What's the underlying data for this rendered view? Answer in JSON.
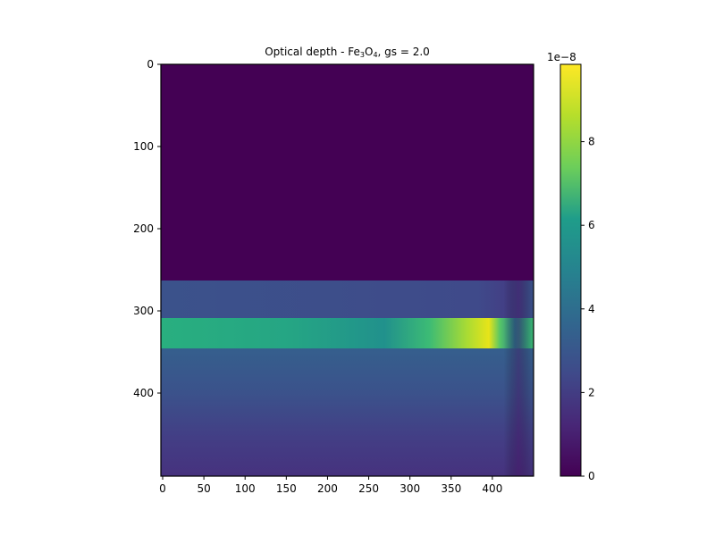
{
  "chart_data": {
    "type": "heatmap",
    "title": {
      "prefix": "Optical depth - Fe",
      "sub1": "3",
      "mid": "O",
      "sub2": "4",
      "suffix": ", gs = 2.0"
    },
    "xlabel": "",
    "ylabel": "",
    "xlim": [
      0,
      450
    ],
    "ylim": [
      0,
      500
    ],
    "y_inverted": true,
    "x_ticks": [
      "0",
      "50",
      "100",
      "150",
      "200",
      "250",
      "300",
      "350",
      "400"
    ],
    "y_ticks": [
      "0",
      "100",
      "200",
      "300",
      "400"
    ],
    "colormap": "viridis",
    "colorbar": {
      "range": [
        0,
        1e-08
      ],
      "tick_values": [
        0,
        2,
        4,
        6,
        8
      ],
      "ticks": [
        "0",
        "2",
        "4",
        "6",
        "8"
      ],
      "scale_label": "1e−8",
      "colors": [
        "#440154",
        "#482777",
        "#3f4a8a",
        "#31678e",
        "#26838f",
        "#1f9d8a",
        "#6cce5a",
        "#b6de2b",
        "#fee825"
      ]
    },
    "regions": [
      {
        "y_range": [
          0,
          263
        ],
        "level": 0.0
      },
      {
        "y_range": [
          263,
          308
        ],
        "level": 0.32
      },
      {
        "y_range": [
          308,
          345
        ],
        "level": 0.62,
        "peak_x": 395,
        "peak_level": 0.95
      },
      {
        "y_range": [
          345,
          500
        ],
        "level": 0.35,
        "fade_to": 0.08
      }
    ],
    "grid": false,
    "legend": "none"
  }
}
